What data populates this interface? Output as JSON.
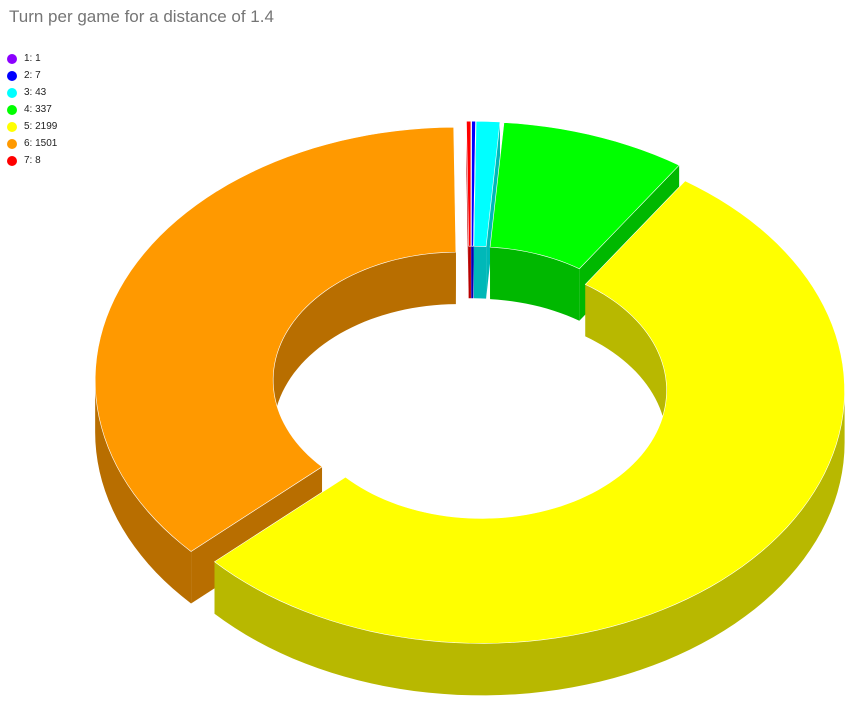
{
  "chart_data": {
    "type": "pie",
    "style": "3d-donut",
    "title": "Turn per game for a distance of 1.4",
    "legend_position": "top-left",
    "categories": [
      "1",
      "2",
      "3",
      "4",
      "5",
      "6",
      "7"
    ],
    "values": [
      1,
      7,
      43,
      337,
      2199,
      1501,
      8
    ],
    "labels": [
      "1: 1",
      "2: 7",
      "3: 43",
      "4: 337",
      "5: 2199",
      "6: 1501",
      "7: 8"
    ],
    "colors": [
      "#8b00ff",
      "#0000ff",
      "#00ffff",
      "#00ff00",
      "#ffff00",
      "#ff9900",
      "#ff0000"
    ]
  }
}
